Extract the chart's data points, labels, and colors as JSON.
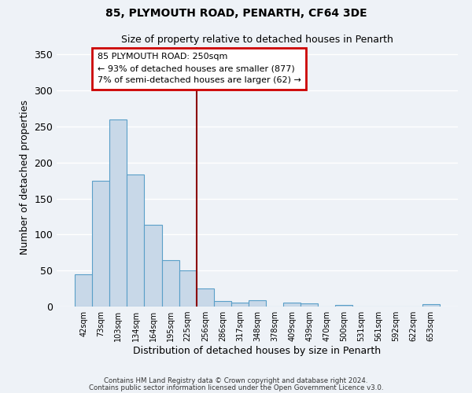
{
  "title": "85, PLYMOUTH ROAD, PENARTH, CF64 3DE",
  "subtitle": "Size of property relative to detached houses in Penarth",
  "xlabel": "Distribution of detached houses by size in Penarth",
  "ylabel": "Number of detached properties",
  "bar_labels": [
    "42sqm",
    "73sqm",
    "103sqm",
    "134sqm",
    "164sqm",
    "195sqm",
    "225sqm",
    "256sqm",
    "286sqm",
    "317sqm",
    "348sqm",
    "378sqm",
    "409sqm",
    "439sqm",
    "470sqm",
    "500sqm",
    "531sqm",
    "561sqm",
    "592sqm",
    "622sqm",
    "653sqm"
  ],
  "bar_values": [
    45,
    175,
    260,
    183,
    113,
    64,
    50,
    25,
    8,
    5,
    9,
    0,
    5,
    4,
    0,
    2,
    0,
    0,
    0,
    0,
    3
  ],
  "bar_color": "#c8d8e8",
  "bar_edge_color": "#5a9fc8",
  "annotation_line1": "85 PLYMOUTH ROAD: 250sqm",
  "annotation_line2": "← 93% of detached houses are smaller (877)",
  "annotation_line3": "7% of semi-detached houses are larger (62) →",
  "vline_color": "#8b0000",
  "annotation_box_color": "#ffffff",
  "annotation_box_edge": "#cc0000",
  "ylim": [
    0,
    360
  ],
  "yticks": [
    0,
    50,
    100,
    150,
    200,
    250,
    300,
    350
  ],
  "footer_line1": "Contains HM Land Registry data © Crown copyright and database right 2024.",
  "footer_line2": "Contains public sector information licensed under the Open Government Licence v3.0.",
  "background_color": "#eef2f7",
  "grid_color": "#ffffff"
}
